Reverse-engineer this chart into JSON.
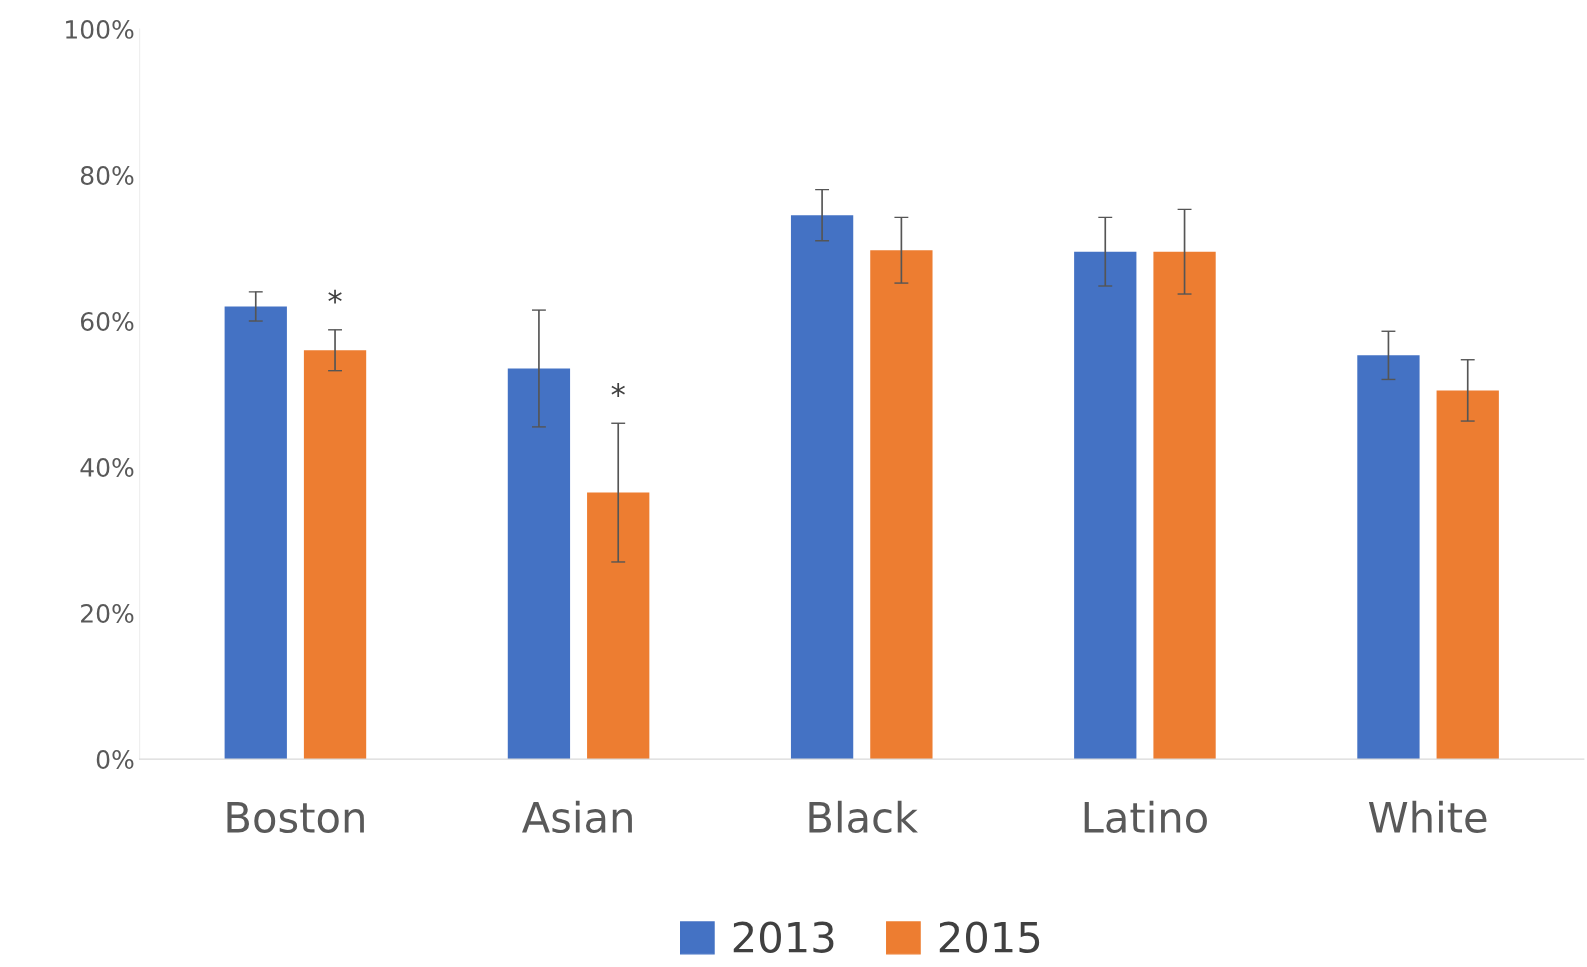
{
  "chart_data": {
    "type": "bar",
    "categories": [
      "Boston",
      "Asian",
      "Black",
      "Latino",
      "White"
    ],
    "series": [
      {
        "name": "2013",
        "color": "#4472c4",
        "values": [
          62,
          53.5,
          74.5,
          69.5,
          55.3
        ],
        "errors": [
          2,
          8,
          3.5,
          4.7,
          3.3
        ]
      },
      {
        "name": "2015",
        "color": "#ed7d31",
        "values": [
          56,
          36.5,
          69.7,
          69.5,
          50.5
        ],
        "errors": [
          2.8,
          9.5,
          4.5,
          5.8,
          4.2
        ]
      }
    ],
    "ylim": [
      0,
      100
    ],
    "yticks": [
      {
        "value": 0,
        "label": "0%"
      },
      {
        "value": 20,
        "label": "20%"
      },
      {
        "value": 40,
        "label": "40%"
      },
      {
        "value": 60,
        "label": "60%"
      },
      {
        "value": 80,
        "label": "80%"
      },
      {
        "value": 100,
        "label": "100%"
      }
    ],
    "annotations": [
      "*",
      "*"
    ],
    "grid": false,
    "legend": "bottom"
  }
}
